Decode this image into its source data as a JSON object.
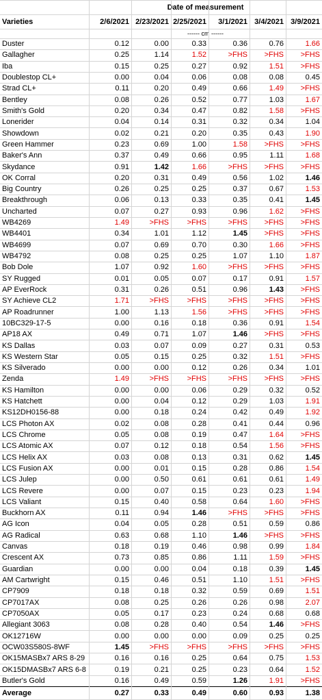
{
  "table": {
    "group_header": "Date of measurement",
    "columns": [
      "Varieties",
      "2/6/2021",
      "2/23/2021",
      "2/25/2021",
      "3/1/2021",
      "3/4/2021",
      "3/9/2021"
    ],
    "unit": "------ cm ------",
    "rows": [
      {
        "variety": "Duster",
        "cells": [
          "0.12",
          "0.00",
          "0.33",
          "0.36",
          "0.76",
          {
            "text": "1.66",
            "color": "#e00000"
          }
        ]
      },
      {
        "variety": "Gallagher",
        "cells": [
          "0.25",
          "1.14",
          {
            "text": "1.52",
            "color": "#e00000"
          },
          {
            "text": ">FHS",
            "color": "#e00000"
          },
          {
            "text": ">FHS",
            "color": "#e00000"
          },
          {
            "text": ">FHS",
            "color": "#e00000"
          }
        ]
      },
      {
        "variety": "Iba",
        "cells": [
          "0.15",
          "0.25",
          "0.27",
          "0.92",
          {
            "text": "1.51",
            "color": "#e00000"
          },
          {
            "text": ">FHS",
            "color": "#e00000"
          }
        ]
      },
      {
        "variety": "Doublestop CL+",
        "cells": [
          "0.00",
          "0.04",
          "0.06",
          "0.08",
          "0.08",
          "0.45"
        ]
      },
      {
        "variety": "Strad CL+",
        "cells": [
          "0.11",
          "0.20",
          "0.49",
          "0.66",
          {
            "text": "1.49",
            "color": "#e00000"
          },
          {
            "text": ">FHS",
            "color": "#e00000"
          }
        ]
      },
      {
        "variety": "Bentley",
        "cells": [
          "0.08",
          "0.26",
          "0.52",
          "0.77",
          "1.03",
          {
            "text": "1.67",
            "color": "#e00000"
          }
        ]
      },
      {
        "variety": "Smith's Gold",
        "cells": [
          "0.20",
          "0.34",
          "0.47",
          "0.82",
          {
            "text": "1.58",
            "color": "#e00000"
          },
          {
            "text": ">FHS",
            "color": "#e00000"
          }
        ]
      },
      {
        "variety": "Lonerider",
        "cells": [
          "0.04",
          "0.14",
          "0.31",
          "0.32",
          "0.34",
          "1.04"
        ]
      },
      {
        "variety": "Showdown",
        "cells": [
          "0.02",
          "0.21",
          "0.20",
          "0.35",
          "0.43",
          {
            "text": "1.90",
            "color": "#e00000"
          }
        ]
      },
      {
        "variety": "Green Hammer",
        "cells": [
          "0.23",
          "0.69",
          "1.00",
          {
            "text": "1.58",
            "color": "#e00000"
          },
          {
            "text": ">FHS",
            "color": "#e00000"
          },
          {
            "text": ">FHS",
            "color": "#e00000"
          }
        ]
      },
      {
        "variety": "Baker's Ann",
        "cells": [
          "0.37",
          "0.49",
          "0.66",
          "0.95",
          "1.11",
          {
            "text": "1.68",
            "color": "#e00000"
          }
        ]
      },
      {
        "variety": "Skydance",
        "cells": [
          "0.91",
          {
            "text": "1.42",
            "weight": "bold"
          },
          {
            "text": "1.66",
            "color": "#e00000"
          },
          {
            "text": ">FHS",
            "color": "#e00000"
          },
          {
            "text": ">FHS",
            "color": "#e00000"
          },
          {
            "text": ">FHS",
            "color": "#e00000"
          }
        ]
      },
      {
        "variety": "OK Corral",
        "cells": [
          "0.20",
          "0.31",
          "0.49",
          "0.56",
          "1.02",
          {
            "text": "1.46",
            "weight": "bold"
          }
        ]
      },
      {
        "variety": "Big Country",
        "cells": [
          "0.26",
          "0.25",
          "0.25",
          "0.37",
          "0.67",
          {
            "text": "1.53",
            "color": "#e00000"
          }
        ]
      },
      {
        "variety": "Breakthrough",
        "cells": [
          "0.06",
          "0.13",
          "0.33",
          "0.35",
          "0.41",
          {
            "text": "1.45",
            "weight": "bold"
          }
        ]
      },
      {
        "variety": "Uncharted",
        "cells": [
          "0.07",
          "0.27",
          "0.93",
          "0.96",
          {
            "text": "1.62",
            "color": "#e00000"
          },
          {
            "text": ">FHS",
            "color": "#e00000"
          }
        ]
      },
      {
        "variety": "WB4269",
        "cells": [
          {
            "text": "1.49",
            "color": "#e00000"
          },
          {
            "text": ">FHS",
            "color": "#e00000"
          },
          {
            "text": ">FHS",
            "color": "#e00000"
          },
          {
            "text": ">FHS",
            "color": "#e00000"
          },
          {
            "text": ">FHS",
            "color": "#e00000"
          },
          {
            "text": ">FHS",
            "color": "#e00000"
          }
        ]
      },
      {
        "variety": "WB4401",
        "cells": [
          "0.34",
          "1.01",
          "1.12",
          {
            "text": "1.45",
            "weight": "bold"
          },
          {
            "text": ">FHS",
            "color": "#e00000"
          },
          {
            "text": ">FHS",
            "color": "#e00000"
          }
        ]
      },
      {
        "variety": "WB4699",
        "cells": [
          "0.07",
          "0.69",
          "0.70",
          "0.30",
          {
            "text": "1.66",
            "color": "#e00000"
          },
          {
            "text": ">FHS",
            "color": "#e00000"
          }
        ]
      },
      {
        "variety": "WB4792",
        "cells": [
          "0.08",
          "0.25",
          "0.25",
          "1.07",
          "1.10",
          {
            "text": "1.87",
            "color": "#e00000"
          }
        ]
      },
      {
        "variety": "Bob Dole",
        "cells": [
          "1.07",
          "0.92",
          {
            "text": "1.60",
            "color": "#e00000"
          },
          {
            "text": ">FHS",
            "color": "#e00000"
          },
          {
            "text": ">FHS",
            "color": "#e00000"
          },
          {
            "text": ">FHS",
            "color": "#e00000"
          }
        ]
      },
      {
        "variety": "SY Rugged",
        "cells": [
          "0.01",
          "0.05",
          "0.07",
          "0.17",
          "0.91",
          {
            "text": "1.57",
            "color": "#e00000"
          }
        ]
      },
      {
        "variety": "AP EverRock",
        "cells": [
          "0.31",
          "0.26",
          "0.51",
          "0.96",
          {
            "text": "1.43",
            "weight": "bold"
          },
          {
            "text": ">FHS",
            "color": "#e00000"
          }
        ]
      },
      {
        "variety": "SY Achieve CL2",
        "cells": [
          {
            "text": "1.71",
            "color": "#e00000"
          },
          {
            "text": ">FHS",
            "color": "#e00000"
          },
          {
            "text": ">FHS",
            "color": "#e00000"
          },
          {
            "text": ">FHS",
            "color": "#e00000"
          },
          {
            "text": ">FHS",
            "color": "#e00000"
          },
          {
            "text": ">FHS",
            "color": "#e00000"
          }
        ]
      },
      {
        "variety": "AP Roadrunner",
        "cells": [
          "1.00",
          "1.13",
          {
            "text": "1.56",
            "color": "#e00000"
          },
          {
            "text": ">FHS",
            "color": "#e00000"
          },
          {
            "text": ">FHS",
            "color": "#e00000"
          },
          {
            "text": ">FHS",
            "color": "#e00000"
          }
        ]
      },
      {
        "variety": "10BC329-17-5",
        "cells": [
          "0.00",
          "0.16",
          "0.18",
          "0.36",
          "0.91",
          {
            "text": "1.54",
            "color": "#e00000"
          }
        ]
      },
      {
        "variety": "AP18 AX",
        "cells": [
          "0.49",
          "0.71",
          "1.07",
          {
            "text": "1.46",
            "weight": "bold"
          },
          {
            "text": ">FHS",
            "color": "#e00000"
          },
          {
            "text": ">FHS",
            "color": "#e00000"
          }
        ]
      },
      {
        "variety": "KS Dallas",
        "cells": [
          "0.03",
          "0.07",
          "0.09",
          "0.27",
          "0.31",
          "0.53"
        ]
      },
      {
        "variety": "KS Western Star",
        "cells": [
          "0.05",
          "0.15",
          "0.25",
          "0.32",
          {
            "text": "1.51",
            "color": "#e00000"
          },
          {
            "text": ">FHS",
            "color": "#e00000"
          }
        ]
      },
      {
        "variety": "KS Silverado",
        "cells": [
          "0.00",
          "0.00",
          "0.12",
          "0.26",
          "0.34",
          "1.01"
        ]
      },
      {
        "variety": "Zenda",
        "cells": [
          {
            "text": "1.49",
            "color": "#e00000"
          },
          {
            "text": ">FHS",
            "color": "#e00000"
          },
          {
            "text": ">FHS",
            "color": "#e00000"
          },
          {
            "text": ">FHS",
            "color": "#e00000"
          },
          {
            "text": ">FHS",
            "color": "#e00000"
          },
          {
            "text": ">FHS",
            "color": "#e00000"
          }
        ]
      },
      {
        "variety": "KS Hamilton",
        "cells": [
          "0.00",
          "0.00",
          "0.06",
          "0.29",
          "0.32",
          "0.52"
        ]
      },
      {
        "variety": "KS Hatchett",
        "cells": [
          "0.00",
          "0.04",
          "0.12",
          "0.29",
          "1.03",
          {
            "text": "1.91",
            "color": "#e00000"
          }
        ]
      },
      {
        "variety": "KS12DH0156-88",
        "cells": [
          "0.00",
          "0.18",
          "0.24",
          "0.42",
          "0.49",
          {
            "text": "1.92",
            "color": "#e00000"
          }
        ]
      },
      {
        "variety": "LCS Photon AX",
        "cells": [
          "0.02",
          "0.08",
          "0.28",
          "0.41",
          "0.44",
          "0.96"
        ]
      },
      {
        "variety": "LCS Chrome",
        "cells": [
          "0.05",
          "0.08",
          "0.19",
          "0.47",
          {
            "text": "1.64",
            "color": "#e00000"
          },
          {
            "text": ">FHS",
            "color": "#e00000"
          }
        ]
      },
      {
        "variety": "LCS Atomic AX",
        "cells": [
          "0.07",
          "0.12",
          "0.18",
          "0.54",
          {
            "text": "1.56",
            "color": "#e00000"
          },
          {
            "text": ">FHS",
            "color": "#e00000"
          }
        ]
      },
      {
        "variety": "LCS Helix AX",
        "cells": [
          "0.03",
          "0.08",
          "0.13",
          "0.31",
          "0.62",
          {
            "text": "1.45",
            "weight": "bold"
          }
        ]
      },
      {
        "variety": "LCS Fusion AX",
        "cells": [
          "0.00",
          "0.01",
          "0.15",
          "0.28",
          "0.86",
          {
            "text": "1.54",
            "color": "#e00000"
          }
        ]
      },
      {
        "variety": "LCS Julep",
        "cells": [
          "0.00",
          "0.50",
          "0.61",
          "0.61",
          "0.61",
          {
            "text": "1.49",
            "color": "#e00000"
          }
        ]
      },
      {
        "variety": "LCS Revere",
        "cells": [
          "0.00",
          "0.07",
          "0.15",
          "0.23",
          "0.23",
          {
            "text": "1.94",
            "color": "#e00000"
          }
        ]
      },
      {
        "variety": "LCS Valiant",
        "cells": [
          "0.15",
          "0.40",
          "0.58",
          "0.64",
          {
            "text": "1.60",
            "color": "#e00000"
          },
          {
            "text": ">FHS",
            "color": "#e00000"
          }
        ]
      },
      {
        "variety": "Buckhorn AX",
        "cells": [
          "0.11",
          "0.94",
          {
            "text": "1.46",
            "weight": "bold"
          },
          {
            "text": ">FHS",
            "color": "#e00000"
          },
          {
            "text": ">FHS",
            "color": "#e00000"
          },
          {
            "text": ">FHS",
            "color": "#e00000"
          }
        ]
      },
      {
        "variety": "AG Icon",
        "cells": [
          "0.04",
          "0.05",
          "0.28",
          "0.51",
          "0.59",
          "0.86"
        ]
      },
      {
        "variety": "AG Radical",
        "cells": [
          "0.63",
          "0.68",
          "1.10",
          {
            "text": "1.46",
            "weight": "bold"
          },
          {
            "text": ">FHS",
            "color": "#e00000"
          },
          {
            "text": ">FHS",
            "color": "#e00000"
          }
        ]
      },
      {
        "variety": "Canvas",
        "cells": [
          "0.18",
          "0.19",
          "0.46",
          "0.98",
          "0.99",
          {
            "text": "1.84",
            "color": "#e00000"
          }
        ]
      },
      {
        "variety": "Crescent AX",
        "cells": [
          "0.73",
          "0.85",
          "0.86",
          "1.11",
          {
            "text": "1.59",
            "color": "#e00000"
          },
          {
            "text": ">FHS",
            "color": "#e00000"
          }
        ]
      },
      {
        "variety": "Guardian",
        "cells": [
          "0.00",
          "0.00",
          "0.04",
          "0.18",
          "0.39",
          {
            "text": "1.45",
            "weight": "bold"
          }
        ]
      },
      {
        "variety": "AM Cartwright",
        "cells": [
          "0.15",
          "0.46",
          "0.51",
          "1.10",
          {
            "text": "1.51",
            "color": "#e00000"
          },
          {
            "text": ">FHS",
            "color": "#e00000"
          }
        ]
      },
      {
        "variety": "CP7909",
        "cells": [
          "0.18",
          "0.18",
          "0.32",
          "0.59",
          "0.69",
          {
            "text": "1.51",
            "color": "#e00000"
          }
        ]
      },
      {
        "variety": "CP7017AX",
        "cells": [
          "0.08",
          "0.25",
          "0.26",
          "0.26",
          "0.98",
          {
            "text": "2.07",
            "color": "#e00000"
          }
        ]
      },
      {
        "variety": "CP7050AX",
        "cells": [
          "0.05",
          "0.17",
          "0.23",
          "0.24",
          "0.68",
          "0.68"
        ]
      },
      {
        "variety": "Allegiant 3063",
        "cells": [
          "0.08",
          "0.28",
          "0.40",
          "0.54",
          {
            "text": "1.46",
            "weight": "bold"
          },
          {
            "text": ">FHS",
            "color": "#e00000"
          }
        ]
      },
      {
        "variety": "OK12716W",
        "cells": [
          "0.00",
          "0.00",
          "0.00",
          "0.09",
          "0.25",
          "0.25"
        ]
      },
      {
        "variety": "OCW03S580S-8WF",
        "cells": [
          {
            "text": "1.45",
            "weight": "bold"
          },
          {
            "text": ">FHS",
            "color": "#e00000"
          },
          {
            "text": ">FHS",
            "color": "#e00000"
          },
          {
            "text": ">FHS",
            "color": "#e00000"
          },
          {
            "text": ">FHS",
            "color": "#e00000"
          },
          {
            "text": ">FHS",
            "color": "#e00000"
          }
        ]
      },
      {
        "variety": "OK15MASBx7 ARS 8-29",
        "cells": [
          "0.16",
          "0.16",
          "0.25",
          "0.64",
          "0.75",
          {
            "text": "1.53",
            "color": "#e00000"
          }
        ]
      },
      {
        "variety": "OK15DMASBx7 ARS 6-8",
        "cells": [
          "0.19",
          "0.21",
          "0.25",
          "0.23",
          "0.64",
          {
            "text": "1.52",
            "color": "#e00000"
          }
        ]
      },
      {
        "variety": "Butler's Gold",
        "cells": [
          "0.16",
          "0.49",
          "0.59",
          {
            "text": "1.26",
            "weight": "bold"
          },
          {
            "text": "1.91",
            "color": "#e00000"
          },
          {
            "text": ">FHS",
            "color": "#e00000"
          }
        ]
      }
    ],
    "average": {
      "label": "Average",
      "cells": [
        "0.27",
        "0.33",
        "0.49",
        "0.60",
        "0.93",
        "1.38"
      ]
    }
  }
}
